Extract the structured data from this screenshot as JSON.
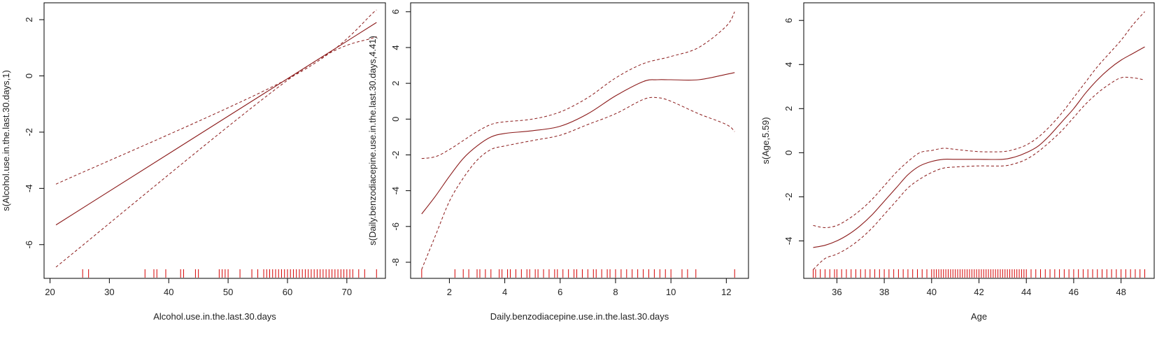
{
  "chart_data": [
    {
      "type": "line",
      "xlabel": "Alcohol.use.in.the.last.30.days",
      "ylabel": "s(Alcohol.use.in.the.last.30.days,1)",
      "xlim": [
        19,
        76.5
      ],
      "ylim": [
        -7.2,
        2.6
      ],
      "xticks": [
        20,
        30,
        40,
        50,
        60,
        70
      ],
      "yticks": [
        -6,
        -4,
        -2,
        0,
        2
      ],
      "series": [
        {
          "role": "fit",
          "x": [
            21,
            75
          ],
          "y": [
            -5.3,
            1.9
          ]
        },
        {
          "role": "upper",
          "x": [
            21,
            61,
            75
          ],
          "y": [
            -3.85,
            0,
            2.35
          ]
        },
        {
          "role": "lower",
          "x": [
            21,
            61,
            75
          ],
          "y": [
            -6.8,
            0,
            1.4
          ]
        }
      ],
      "rug": [
        25.5,
        26.5,
        36,
        37.5,
        38,
        39.5,
        42,
        42.5,
        44.5,
        45,
        48.5,
        49,
        49.5,
        50,
        52,
        54,
        55,
        56,
        56.5,
        57,
        57.5,
        58,
        58.5,
        59,
        59.5,
        60,
        60.5,
        61,
        61.5,
        62,
        62.5,
        63,
        63.5,
        64,
        64.5,
        65,
        65.5,
        66,
        66.5,
        67,
        67.5,
        68,
        68.5,
        69,
        69.5,
        70,
        70.5,
        71,
        72,
        73,
        75
      ]
    },
    {
      "type": "line",
      "xlabel": "Daily.benzodiacepine.use.in.the.last.30.days",
      "ylabel": "s(Daily.benzodiacepine.use.in.the.last.30.days,4.41)",
      "xlim": [
        0.6,
        12.8
      ],
      "ylim": [
        -8.9,
        6.5
      ],
      "xticks": [
        2,
        4,
        6,
        8,
        10,
        12
      ],
      "yticks": [
        -8,
        -6,
        -4,
        -2,
        0,
        2,
        4,
        6
      ],
      "series": [
        {
          "role": "fit",
          "x": [
            1,
            1.5,
            2,
            2.5,
            3,
            3.5,
            4,
            5,
            6,
            7,
            8,
            9,
            9.5,
            10,
            11,
            12,
            12.3
          ],
          "y": [
            -5.3,
            -4.3,
            -3.2,
            -2.2,
            -1.5,
            -1.0,
            -0.8,
            -0.65,
            -0.4,
            0.3,
            1.3,
            2.1,
            2.2,
            2.2,
            2.2,
            2.5,
            2.6
          ]
        },
        {
          "role": "upper",
          "x": [
            1,
            1.5,
            2,
            2.5,
            3,
            3.5,
            4,
            5,
            6,
            7,
            8,
            9,
            10,
            11,
            12,
            12.3
          ],
          "y": [
            -2.2,
            -2.1,
            -1.7,
            -1.2,
            -0.7,
            -0.3,
            -0.15,
            0,
            0.4,
            1.2,
            2.3,
            3.1,
            3.5,
            4.0,
            5.2,
            6.0
          ]
        },
        {
          "role": "lower",
          "x": [
            1,
            1.5,
            2,
            2.5,
            3,
            3.5,
            4,
            5,
            6,
            7,
            8,
            9,
            9.5,
            10,
            11,
            12,
            12.3
          ],
          "y": [
            -8.4,
            -6.5,
            -4.6,
            -3.3,
            -2.3,
            -1.7,
            -1.5,
            -1.2,
            -0.9,
            -0.3,
            0.3,
            1.1,
            1.2,
            1.0,
            0.3,
            -0.3,
            -0.7
          ]
        }
      ],
      "rug": [
        1,
        2.2,
        2.5,
        2.7,
        3,
        3.1,
        3.3,
        3.5,
        3.8,
        3.9,
        4.1,
        4.2,
        4.4,
        4.6,
        4.8,
        4.9,
        5.1,
        5.2,
        5.4,
        5.6,
        5.8,
        5.9,
        6.1,
        6.3,
        6.5,
        6.6,
        6.8,
        7,
        7.2,
        7.3,
        7.5,
        7.7,
        7.8,
        8,
        8.2,
        8.4,
        8.6,
        8.8,
        9,
        9.2,
        9.4,
        9.6,
        9.8,
        10,
        10.4,
        10.6,
        10.9,
        12.3
      ]
    },
    {
      "type": "line",
      "xlabel": "Age",
      "ylabel": "s(Age,5.59)",
      "xlim": [
        34.6,
        49.4
      ],
      "ylim": [
        -5.7,
        6.8
      ],
      "xticks": [
        36,
        38,
        40,
        42,
        44,
        46,
        48
      ],
      "yticks": [
        -4,
        -2,
        0,
        2,
        4,
        6
      ],
      "series": [
        {
          "role": "fit",
          "x": [
            35,
            35.5,
            36,
            36.5,
            37,
            37.5,
            38,
            38.5,
            39,
            39.5,
            40,
            40.5,
            41,
            42,
            43,
            43.5,
            44,
            44.5,
            45,
            45.5,
            46,
            46.5,
            47,
            47.5,
            48,
            48.5,
            49
          ],
          "y": [
            -4.3,
            -4.2,
            -4.0,
            -3.7,
            -3.3,
            -2.8,
            -2.2,
            -1.6,
            -1.0,
            -0.6,
            -0.4,
            -0.3,
            -0.3,
            -0.3,
            -0.3,
            -0.2,
            0,
            0.3,
            0.8,
            1.4,
            2.0,
            2.7,
            3.3,
            3.8,
            4.2,
            4.5,
            4.8
          ]
        },
        {
          "role": "upper",
          "x": [
            35,
            35.5,
            36,
            36.5,
            37,
            37.5,
            38,
            38.5,
            39,
            39.5,
            40,
            40.5,
            41,
            42,
            43,
            43.5,
            44,
            44.5,
            45,
            45.5,
            46,
            46.5,
            47,
            47.5,
            48,
            48.5,
            49
          ],
          "y": [
            -3.3,
            -3.4,
            -3.3,
            -3.0,
            -2.6,
            -2.1,
            -1.5,
            -0.9,
            -0.4,
            0,
            0.1,
            0.2,
            0.15,
            0.05,
            0.05,
            0.15,
            0.35,
            0.7,
            1.2,
            1.8,
            2.5,
            3.2,
            3.9,
            4.5,
            5.1,
            5.8,
            6.4
          ]
        },
        {
          "role": "lower",
          "x": [
            35,
            35.5,
            36,
            36.5,
            37,
            37.5,
            38,
            38.5,
            39,
            39.5,
            40,
            40.5,
            41,
            42,
            43,
            43.5,
            44,
            44.5,
            45,
            45.5,
            46,
            46.5,
            47,
            47.5,
            48,
            48.5,
            49
          ],
          "y": [
            -5.3,
            -4.8,
            -4.6,
            -4.3,
            -3.9,
            -3.4,
            -2.8,
            -2.2,
            -1.6,
            -1.2,
            -0.9,
            -0.7,
            -0.65,
            -0.6,
            -0.6,
            -0.5,
            -0.3,
            0.05,
            0.5,
            1.0,
            1.6,
            2.2,
            2.7,
            3.1,
            3.4,
            3.4,
            3.3
          ]
        }
      ],
      "rug": [
        35,
        35.1,
        35.3,
        35.5,
        35.7,
        35.9,
        36,
        36.2,
        36.4,
        36.6,
        36.8,
        37,
        37.2,
        37.4,
        37.6,
        37.8,
        38,
        38.2,
        38.4,
        38.6,
        38.8,
        39,
        39.2,
        39.4,
        39.6,
        39.8,
        40,
        40.1,
        40.2,
        40.3,
        40.4,
        40.5,
        40.6,
        40.7,
        40.8,
        40.9,
        41,
        41.1,
        41.2,
        41.3,
        41.4,
        41.5,
        41.6,
        41.7,
        41.8,
        41.9,
        42,
        42.1,
        42.2,
        42.3,
        42.4,
        42.5,
        42.6,
        42.7,
        42.8,
        42.9,
        43,
        43.1,
        43.2,
        43.3,
        43.4,
        43.5,
        43.6,
        43.7,
        43.8,
        43.9,
        44,
        44.2,
        44.4,
        44.6,
        44.8,
        45,
        45.2,
        45.4,
        45.6,
        45.8,
        46,
        46.2,
        46.4,
        46.6,
        46.8,
        47,
        47.2,
        47.4,
        47.6,
        47.8,
        48,
        48.2,
        48.4,
        48.6,
        48.8,
        49
      ]
    }
  ]
}
